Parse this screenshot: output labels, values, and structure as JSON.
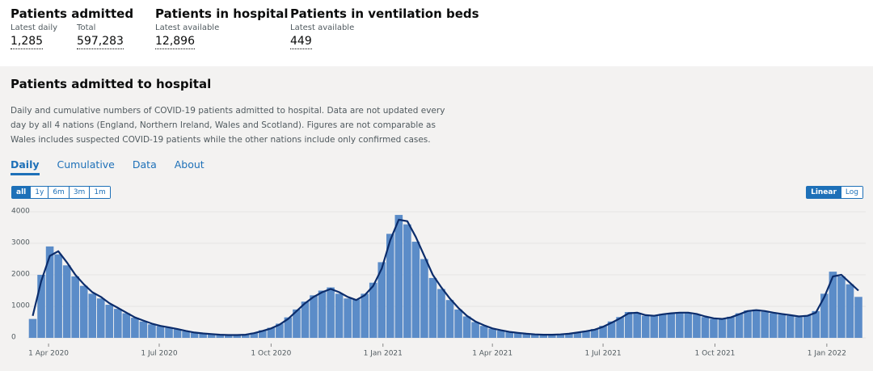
{
  "headline": [
    {
      "title": "Patients admitted",
      "figures": [
        {
          "label": "Latest daily",
          "value": "1,285"
        },
        {
          "label": "Total",
          "value": "597,283"
        }
      ]
    },
    {
      "title": "Patients in hospital",
      "figures": [
        {
          "label": "Latest available",
          "value": "12,896"
        }
      ]
    },
    {
      "title": "Patients in ventilation beds",
      "figures": [
        {
          "label": "Latest available",
          "value": "449"
        }
      ]
    }
  ],
  "card": {
    "title": "Patients admitted to hospital",
    "description": "Daily and cumulative numbers of COVID-19 patients admitted to hospital. Data are not updated every day by all 4 nations (England, Northern Ireland, Wales and Scotland). Figures are not comparable as Wales includes suspected COVID-19 patients while the other nations include only confirmed cases.",
    "tabs": [
      "Daily",
      "Cumulative",
      "Data",
      "About"
    ],
    "ranges": [
      "all",
      "1y",
      "6m",
      "3m",
      "1m"
    ],
    "scales": [
      "Linear",
      "Log"
    ]
  },
  "chart_data": {
    "type": "bar",
    "color": "#5b8cc8",
    "line_color": "#0b2c6b",
    "grid": true,
    "log_scale": false,
    "xlim": [
      "2020-03-15",
      "2022-02-02"
    ],
    "xticks": [
      {
        "value": "2020-04-01",
        "label": "1 Apr 2020"
      },
      {
        "value": "2020-07-01",
        "label": "1 Jul 2020"
      },
      {
        "value": "2020-10-01",
        "label": "1 Oct 2020"
      },
      {
        "value": "2021-01-01",
        "label": "1 Jan 2021"
      },
      {
        "value": "2021-04-01",
        "label": "1 Apr 2021"
      },
      {
        "value": "2021-07-01",
        "label": "1 Jul 2021"
      },
      {
        "value": "2021-10-01",
        "label": "1 Oct 2021"
      },
      {
        "value": "2022-01-01",
        "label": "1 Jan 2022"
      }
    ],
    "ylim": [
      0,
      4000
    ],
    "yticks": [
      0,
      1000,
      2000,
      3000,
      4000
    ],
    "x": [
      "2020-03-19",
      "2020-03-26",
      "2020-04-02",
      "2020-04-09",
      "2020-04-16",
      "2020-04-23",
      "2020-04-30",
      "2020-05-07",
      "2020-05-14",
      "2020-05-21",
      "2020-05-28",
      "2020-06-04",
      "2020-06-11",
      "2020-06-18",
      "2020-06-25",
      "2020-07-02",
      "2020-07-09",
      "2020-07-16",
      "2020-07-23",
      "2020-07-30",
      "2020-08-06",
      "2020-08-13",
      "2020-08-20",
      "2020-08-27",
      "2020-09-03",
      "2020-09-10",
      "2020-09-17",
      "2020-09-24",
      "2020-10-01",
      "2020-10-08",
      "2020-10-15",
      "2020-10-22",
      "2020-10-29",
      "2020-11-05",
      "2020-11-12",
      "2020-11-19",
      "2020-11-26",
      "2020-12-03",
      "2020-12-10",
      "2020-12-17",
      "2020-12-24",
      "2020-12-31",
      "2021-01-07",
      "2021-01-14",
      "2021-01-21",
      "2021-01-28",
      "2021-02-04",
      "2021-02-11",
      "2021-02-18",
      "2021-02-25",
      "2021-03-04",
      "2021-03-11",
      "2021-03-18",
      "2021-03-25",
      "2021-04-01",
      "2021-04-08",
      "2021-04-15",
      "2021-04-22",
      "2021-04-29",
      "2021-05-06",
      "2021-05-13",
      "2021-05-20",
      "2021-05-27",
      "2021-06-03",
      "2021-06-10",
      "2021-06-17",
      "2021-06-24",
      "2021-07-01",
      "2021-07-08",
      "2021-07-15",
      "2021-07-22",
      "2021-07-29",
      "2021-08-05",
      "2021-08-12",
      "2021-08-19",
      "2021-08-26",
      "2021-09-02",
      "2021-09-09",
      "2021-09-16",
      "2021-09-23",
      "2021-09-30",
      "2021-10-07",
      "2021-10-14",
      "2021-10-21",
      "2021-10-28",
      "2021-11-04",
      "2021-11-11",
      "2021-11-18",
      "2021-11-25",
      "2021-12-02",
      "2021-12-09",
      "2021-12-16",
      "2021-12-23",
      "2021-12-30",
      "2022-01-06",
      "2022-01-13",
      "2022-01-20",
      "2022-01-27"
    ],
    "values": [
      600,
      2000,
      2900,
      2650,
      2300,
      1950,
      1650,
      1400,
      1250,
      1050,
      920,
      780,
      640,
      520,
      430,
      370,
      320,
      270,
      210,
      160,
      130,
      110,
      95,
      85,
      90,
      105,
      160,
      240,
      320,
      450,
      650,
      900,
      1150,
      1350,
      1500,
      1600,
      1400,
      1250,
      1220,
      1400,
      1750,
      2400,
      3300,
      3900,
      3600,
      3050,
      2500,
      1900,
      1550,
      1200,
      900,
      680,
      500,
      380,
      290,
      230,
      180,
      150,
      125,
      105,
      95,
      98,
      112,
      135,
      175,
      220,
      280,
      380,
      520,
      660,
      820,
      780,
      700,
      720,
      760,
      790,
      820,
      780,
      740,
      660,
      600,
      590,
      670,
      780,
      870,
      900,
      830,
      780,
      740,
      700,
      660,
      720,
      850,
      1400,
      2100,
      1950,
      1700,
      1300
    ],
    "rolling_average": [
      700,
      1800,
      2600,
      2750,
      2400,
      2000,
      1700,
      1450,
      1300,
      1100,
      950,
      800,
      650,
      550,
      450,
      380,
      330,
      280,
      220,
      170,
      140,
      120,
      100,
      90,
      90,
      100,
      150,
      220,
      300,
      420,
      600,
      850,
      1100,
      1300,
      1450,
      1550,
      1450,
      1300,
      1200,
      1350,
      1650,
      2200,
      3100,
      3750,
      3700,
      3200,
      2600,
      2000,
      1600,
      1250,
      950,
      700,
      520,
      400,
      300,
      240,
      190,
      160,
      130,
      110,
      100,
      100,
      110,
      130,
      170,
      210,
      260,
      350,
      480,
      620,
      780,
      800,
      720,
      700,
      750,
      780,
      800,
      800,
      760,
      680,
      620,
      600,
      650,
      750,
      850,
      880,
      850,
      800,
      760,
      720,
      680,
      700,
      800,
      1300,
      1950,
      2000,
      1750,
      1500
    ]
  }
}
